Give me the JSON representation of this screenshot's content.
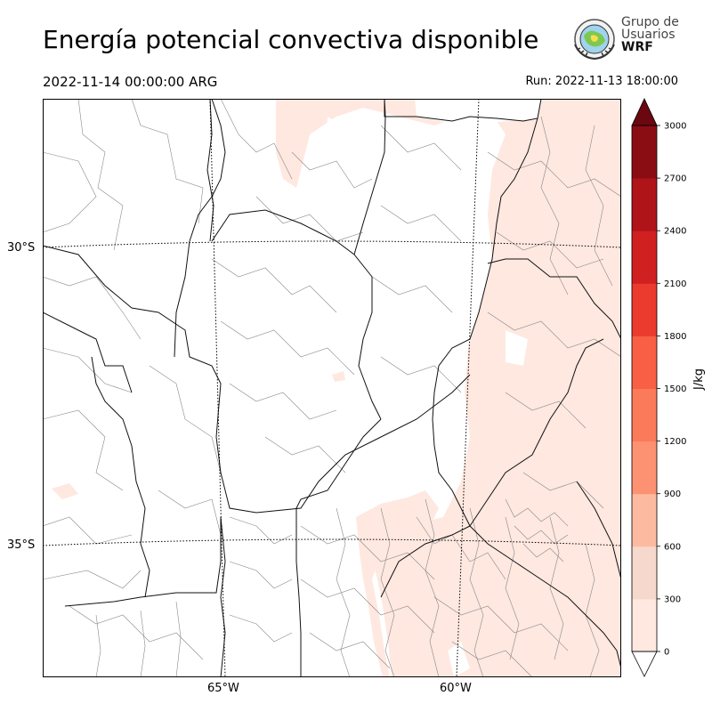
{
  "header": {
    "title": "Energía potencial convectiva disponible",
    "valid_time": "2022-11-14 00:00:00 ARG",
    "run_time": "Run: 2022-11-13 18:00:00"
  },
  "logo": {
    "line1": "Grupo de",
    "line2": "Usuarios",
    "line3": "WRF"
  },
  "map": {
    "lat_labels": [
      "30°S",
      "35°S"
    ],
    "lon_labels": [
      "65°W",
      "60°W"
    ],
    "shading_color": "#fee8e0"
  },
  "colorbar": {
    "units": "J/kg",
    "levels": [
      0,
      300,
      600,
      900,
      1200,
      1500,
      1800,
      2100,
      2400,
      2700,
      3000
    ],
    "level_labels": [
      "0",
      "300",
      "600",
      "900",
      "1200",
      "1500",
      "1800",
      "2100",
      "2400",
      "2700",
      "3000"
    ],
    "colors": [
      "#fee8e0",
      "#f6d8cc",
      "#fcbba1",
      "#fc9272",
      "#fb7a5a",
      "#f85f45",
      "#eb3a2e",
      "#d02020",
      "#af1419",
      "#8b0d14"
    ],
    "over_color": "#6b0710",
    "under_color": "#ffffff"
  }
}
